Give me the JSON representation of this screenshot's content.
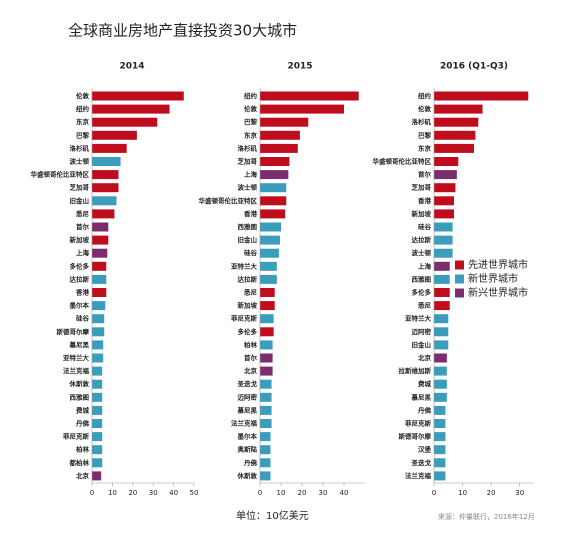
{
  "title": "全球商业房地产直接投资30大城市",
  "unit": "单位：10亿美元",
  "source": "来源：仲量联行，2016年12月",
  "legend": [
    {
      "name": "先进世界城市",
      "color": "#c00d1e"
    },
    {
      "name": "新世界城市",
      "color": "#3a9dbb"
    },
    {
      "name": "新兴世界城市",
      "color": "#7b2d6e"
    }
  ],
  "chart_data": [
    {
      "type": "bar",
      "orientation": "horizontal",
      "title": "2014",
      "categories": [
        "伦敦",
        "纽约",
        "东京",
        "巴黎",
        "洛杉矶",
        "波士顿",
        "华盛顿哥伦比亚特区",
        "芝加哥",
        "旧金山",
        "悉尼",
        "首尔",
        "新加坡",
        "上海",
        "多伦多",
        "达拉斯",
        "香港",
        "墨尔本",
        "硅谷",
        "斯德哥尔摩",
        "慕尼黑",
        "亚特兰大",
        "法兰克福",
        "休斯敦",
        "西雅图",
        "费城",
        "丹佛",
        "菲尼克斯",
        "柏林",
        "都柏林",
        "北京"
      ],
      "values": [
        45,
        38,
        32,
        22,
        17,
        14,
        13,
        13,
        12,
        11,
        8,
        8,
        7.5,
        7,
        7,
        7,
        6.5,
        6,
        6,
        5.5,
        5.5,
        5,
        5,
        5,
        5,
        5,
        5,
        5,
        5,
        4.5
      ],
      "colors": [
        "#c00d1e",
        "#c00d1e",
        "#c00d1e",
        "#c00d1e",
        "#c00d1e",
        "#3a9dbb",
        "#c00d1e",
        "#c00d1e",
        "#3a9dbb",
        "#c00d1e",
        "#7b2d6e",
        "#c00d1e",
        "#7b2d6e",
        "#c00d1e",
        "#3a9dbb",
        "#c00d1e",
        "#3a9dbb",
        "#3a9dbb",
        "#3a9dbb",
        "#3a9dbb",
        "#3a9dbb",
        "#3a9dbb",
        "#3a9dbb",
        "#3a9dbb",
        "#3a9dbb",
        "#3a9dbb",
        "#3a9dbb",
        "#3a9dbb",
        "#3a9dbb",
        "#7b2d6e"
      ],
      "xlim": [
        0,
        50
      ],
      "xticks": [
        0,
        10,
        20,
        30,
        40,
        50
      ]
    },
    {
      "type": "bar",
      "orientation": "horizontal",
      "title": "2015",
      "categories": [
        "纽约",
        "伦敦",
        "巴黎",
        "东京",
        "洛杉矶",
        "芝加哥",
        "上海",
        "波士顿",
        "华盛顿哥伦比亚特区",
        "香港",
        "西雅图",
        "旧金山",
        "硅谷",
        "亚特兰大",
        "达拉斯",
        "悉尼",
        "新加坡",
        "菲尼克斯",
        "多伦多",
        "柏林",
        "首尔",
        "北京",
        "圣迭戈",
        "迈阿密",
        "慕尼黑",
        "法兰克福",
        "墨尔本",
        "奥斯陆",
        "丹佛",
        "休斯敦"
      ],
      "values": [
        47,
        40,
        23,
        19,
        18,
        14,
        13.5,
        12.5,
        12.5,
        12,
        10,
        9.5,
        9,
        8,
        8,
        7,
        7,
        6.5,
        6.5,
        6,
        6,
        6,
        5.5,
        5.5,
        5.5,
        5.5,
        5,
        5,
        5,
        5
      ],
      "colors": [
        "#c00d1e",
        "#c00d1e",
        "#c00d1e",
        "#c00d1e",
        "#c00d1e",
        "#c00d1e",
        "#7b2d6e",
        "#3a9dbb",
        "#c00d1e",
        "#c00d1e",
        "#3a9dbb",
        "#3a9dbb",
        "#3a9dbb",
        "#3a9dbb",
        "#3a9dbb",
        "#c00d1e",
        "#c00d1e",
        "#3a9dbb",
        "#c00d1e",
        "#3a9dbb",
        "#7b2d6e",
        "#7b2d6e",
        "#3a9dbb",
        "#3a9dbb",
        "#3a9dbb",
        "#3a9dbb",
        "#3a9dbb",
        "#3a9dbb",
        "#3a9dbb",
        "#3a9dbb"
      ],
      "xlim": [
        0,
        50
      ],
      "xticks": [
        0,
        10,
        20,
        30,
        40
      ]
    },
    {
      "type": "bar",
      "orientation": "horizontal",
      "title": "2016 (Q1-Q3)",
      "categories": [
        "纽约",
        "伦敦",
        "洛杉矶",
        "巴黎",
        "东京",
        "华盛顿哥伦比亚特区",
        "首尔",
        "芝加哥",
        "香港",
        "新加坡",
        "硅谷",
        "达拉斯",
        "波士顿",
        "上海",
        "西雅图",
        "多伦多",
        "悉尼",
        "亚特兰大",
        "迈阿密",
        "旧金山",
        "北京",
        "拉斯维加斯",
        "费城",
        "慕尼黑",
        "丹佛",
        "菲尼克斯",
        "斯德哥尔摩",
        "汉堡",
        "圣迭戈",
        "法兰克福"
      ],
      "values": [
        33,
        17,
        15.5,
        14.5,
        14,
        8.5,
        8,
        7.5,
        7,
        7,
        6.5,
        6.5,
        6.5,
        5.5,
        5.5,
        5.5,
        5.5,
        5,
        5,
        5,
        4.5,
        4.5,
        4.5,
        4.5,
        4,
        4,
        4,
        4,
        4,
        4
      ],
      "colors": [
        "#c00d1e",
        "#c00d1e",
        "#c00d1e",
        "#c00d1e",
        "#c00d1e",
        "#c00d1e",
        "#7b2d6e",
        "#c00d1e",
        "#c00d1e",
        "#c00d1e",
        "#3a9dbb",
        "#3a9dbb",
        "#3a9dbb",
        "#7b2d6e",
        "#3a9dbb",
        "#c00d1e",
        "#c00d1e",
        "#3a9dbb",
        "#3a9dbb",
        "#3a9dbb",
        "#7b2d6e",
        "#3a9dbb",
        "#3a9dbb",
        "#3a9dbb",
        "#3a9dbb",
        "#3a9dbb",
        "#3a9dbb",
        "#3a9dbb",
        "#3a9dbb",
        "#3a9dbb"
      ],
      "xlim": [
        0,
        35
      ],
      "xticks": [
        0,
        10,
        20,
        30
      ]
    }
  ]
}
